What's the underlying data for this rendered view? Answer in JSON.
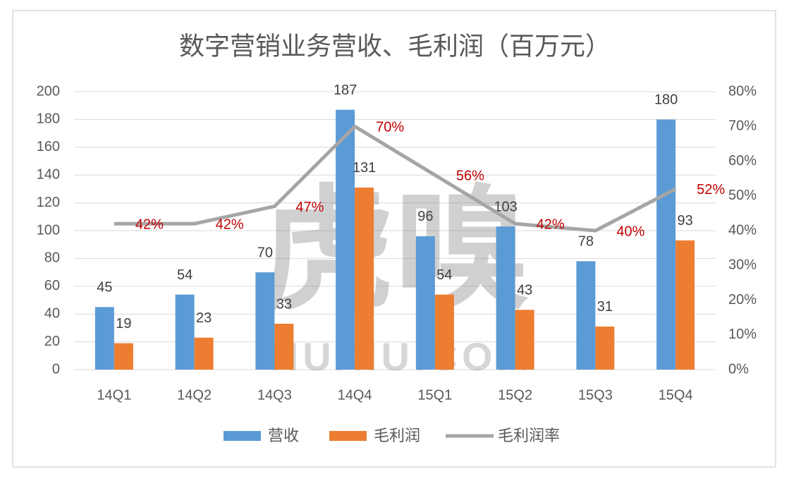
{
  "chart_data": {
    "type": "bar_line",
    "title": "数字营销业务营收、毛利润（百万元）",
    "categories": [
      "14Q1",
      "14Q2",
      "14Q3",
      "14Q4",
      "15Q1",
      "15Q2",
      "15Q3",
      "15Q4"
    ],
    "series": [
      {
        "name": "营收",
        "type": "bar",
        "color": "#5b9bd5",
        "values": [
          45,
          54,
          70,
          187,
          96,
          103,
          78,
          180
        ]
      },
      {
        "name": "毛利润",
        "type": "bar",
        "color": "#ed7d31",
        "values": [
          19,
          23,
          33,
          131,
          54,
          43,
          31,
          93
        ]
      },
      {
        "name": "毛利润率",
        "type": "line",
        "axis": "y2",
        "color": "#a5a5a5",
        "values": [
          42,
          42,
          47,
          70,
          56,
          42,
          40,
          52
        ],
        "value_labels": [
          "42%",
          "42%",
          "47%",
          "70%",
          "56%",
          "42%",
          "40%",
          "52%"
        ]
      }
    ],
    "ylim": [
      0,
      200
    ],
    "yticks": [
      0,
      20,
      40,
      60,
      80,
      100,
      120,
      140,
      160,
      180,
      200
    ],
    "y2lim": [
      0,
      80
    ],
    "y2ticks": [
      {
        "value": 0,
        "label": "0%"
      },
      {
        "value": 10,
        "label": "10%"
      },
      {
        "value": 20,
        "label": "20%"
      },
      {
        "value": 30,
        "label": "30%"
      },
      {
        "value": 40,
        "label": "40%"
      },
      {
        "value": 50,
        "label": "50%"
      },
      {
        "value": 60,
        "label": "60%"
      },
      {
        "value": 70,
        "label": "70%"
      },
      {
        "value": 80,
        "label": "80%"
      }
    ],
    "grid": true,
    "legend": "bottom",
    "watermark": [
      "虎嗅",
      "HUXIU.COM"
    ]
  }
}
